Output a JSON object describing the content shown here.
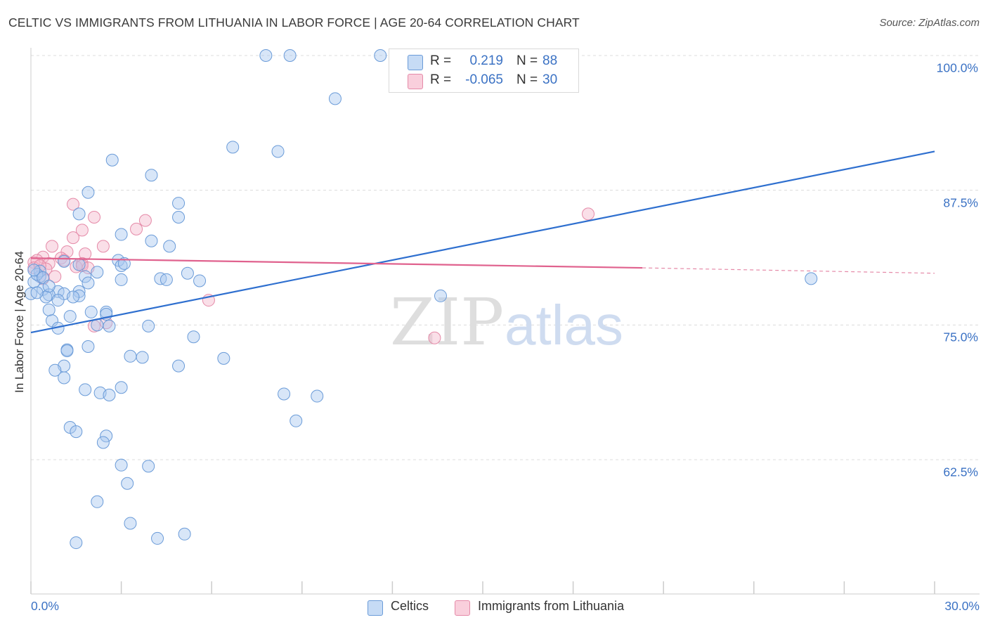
{
  "title": "CELTIC VS IMMIGRANTS FROM LITHUANIA IN LABOR FORCE | AGE 20-64 CORRELATION CHART",
  "source": "Source: ZipAtlas.com",
  "watermark": {
    "zip": "ZIP",
    "atlas": "atlas"
  },
  "legend": {
    "rows": [
      {
        "r_label": "R =",
        "r_value": "0.219",
        "n_label": "N =",
        "n_value": "88"
      },
      {
        "r_label": "R =",
        "r_value": "-0.065",
        "n_label": "N =",
        "n_value": "30"
      }
    ]
  },
  "bottom_legend": {
    "series1": "Celtics",
    "series2": "Immigrants from Lithuania"
  },
  "colors": {
    "blue_fill": "#a9c8ef",
    "blue_stroke": "#6a9bd8",
    "blue_line": "#2e6fcf",
    "pink_fill": "#f5b8cb",
    "pink_stroke": "#e58aa8",
    "pink_line": "#e0628e",
    "grid": "#dcdcdc",
    "axis_text": "#3b72c4"
  },
  "chart_data": {
    "type": "scatter",
    "title": "CELTIC VS IMMIGRANTS FROM LITHUANIA IN LABOR FORCE | AGE 20-64 CORRELATION CHART",
    "xlabel": "",
    "ylabel": "In Labor Force | Age 20-64",
    "xlim": [
      0,
      30
    ],
    "ylim": [
      50.5,
      101
    ],
    "y_ticks": [
      {
        "value": 100,
        "label": "100.0%"
      },
      {
        "value": 87.5,
        "label": "87.5%"
      },
      {
        "value": 75,
        "label": "75.0%"
      },
      {
        "value": 62.5,
        "label": "62.5%"
      }
    ],
    "x_tick_labels": [
      {
        "value": 0,
        "label": "0.0%"
      },
      {
        "value": 30,
        "label": "30.0%"
      }
    ],
    "x_minor_ticks": [
      0,
      3,
      6,
      9,
      12,
      15,
      18,
      21,
      24,
      27,
      30
    ],
    "grid": true,
    "series": [
      {
        "name": "Celtics",
        "color": "#a9c8ef",
        "points": [
          [
            7.8,
            100
          ],
          [
            8.6,
            100
          ],
          [
            11.6,
            100
          ],
          [
            10.1,
            96
          ],
          [
            6.7,
            91.5
          ],
          [
            8.2,
            91.1
          ],
          [
            2.7,
            90.3
          ],
          [
            4,
            88.9
          ],
          [
            1.9,
            87.3
          ],
          [
            4.9,
            86.3
          ],
          [
            1.6,
            85.3
          ],
          [
            4.9,
            85.0
          ],
          [
            3.0,
            83.4
          ],
          [
            4.0,
            82.8
          ],
          [
            4.6,
            82.3
          ],
          [
            2.9,
            81.0
          ],
          [
            1.1,
            80.9
          ],
          [
            3.0,
            80.5
          ],
          [
            5.2,
            79.8
          ],
          [
            2.2,
            79.9
          ],
          [
            0.3,
            79.5
          ],
          [
            1.8,
            79.5
          ],
          [
            4.3,
            79.3
          ],
          [
            4.5,
            79.2
          ],
          [
            3.0,
            79.2
          ],
          [
            5.6,
            79.1
          ],
          [
            0.1,
            79.0
          ],
          [
            1.9,
            78.9
          ],
          [
            0.4,
            78.3
          ],
          [
            1.6,
            78.1
          ],
          [
            0.9,
            78.1
          ],
          [
            1.1,
            77.9
          ],
          [
            0.6,
            77.8
          ],
          [
            0.0,
            77.9
          ],
          [
            1.6,
            77.7
          ],
          [
            1.4,
            77.6
          ],
          [
            13.6,
            77.7
          ],
          [
            0.5,
            77.6
          ],
          [
            0.9,
            77.3
          ],
          [
            25.9,
            79.3
          ],
          [
            0.6,
            76.4
          ],
          [
            2.0,
            76.2
          ],
          [
            2.5,
            76.2
          ],
          [
            2.5,
            76.0
          ],
          [
            1.3,
            75.8
          ],
          [
            0.7,
            75.4
          ],
          [
            2.2,
            75.0
          ],
          [
            2.6,
            74.9
          ],
          [
            3.9,
            74.9
          ],
          [
            0.9,
            74.7
          ],
          [
            5.4,
            73.9
          ],
          [
            1.9,
            73.0
          ],
          [
            1.2,
            72.7
          ],
          [
            1.2,
            72.6
          ],
          [
            3.3,
            72.1
          ],
          [
            3.7,
            72.0
          ],
          [
            6.4,
            71.9
          ],
          [
            4.9,
            71.2
          ],
          [
            1.1,
            71.2
          ],
          [
            0.8,
            70.8
          ],
          [
            1.1,
            70.1
          ],
          [
            1.8,
            69.0
          ],
          [
            3.0,
            69.2
          ],
          [
            2.3,
            68.7
          ],
          [
            2.6,
            68.5
          ],
          [
            8.4,
            68.6
          ],
          [
            9.5,
            68.4
          ],
          [
            8.8,
            66.1
          ],
          [
            1.3,
            65.5
          ],
          [
            1.5,
            65.1
          ],
          [
            2.5,
            64.7
          ],
          [
            2.4,
            64.1
          ],
          [
            3.0,
            62.0
          ],
          [
            3.9,
            61.9
          ],
          [
            3.2,
            60.3
          ],
          [
            2.2,
            58.6
          ],
          [
            3.3,
            56.6
          ],
          [
            1.5,
            54.8
          ],
          [
            4.2,
            55.2
          ],
          [
            5.1,
            55.6
          ],
          [
            0.3,
            80.0
          ],
          [
            0.2,
            79.7
          ],
          [
            0.4,
            79.4
          ],
          [
            0.1,
            80.1
          ],
          [
            0.6,
            78.6
          ],
          [
            0.2,
            78.0
          ],
          [
            1.6,
            80.6
          ],
          [
            3.1,
            80.7
          ]
        ],
        "trend": {
          "x0": 0,
          "y0": 74.3,
          "x1": 30,
          "y1": 91.1
        }
      },
      {
        "name": "Immigrants from Lithuania",
        "color": "#f5b8cb",
        "points": [
          [
            1.4,
            86.2
          ],
          [
            2.1,
            85.0
          ],
          [
            3.8,
            84.7
          ],
          [
            1.7,
            83.8
          ],
          [
            3.5,
            83.9
          ],
          [
            1.4,
            83.1
          ],
          [
            2.4,
            82.3
          ],
          [
            0.7,
            82.3
          ],
          [
            1.2,
            81.8
          ],
          [
            1.8,
            81.6
          ],
          [
            1.0,
            81.2
          ],
          [
            0.4,
            81.3
          ],
          [
            1.1,
            81.0
          ],
          [
            0.1,
            80.8
          ],
          [
            0.2,
            81.0
          ],
          [
            0.6,
            80.7
          ],
          [
            1.7,
            80.7
          ],
          [
            0.5,
            80.2
          ],
          [
            1.5,
            80.4
          ],
          [
            1.7,
            80.5
          ],
          [
            0.1,
            80.3
          ],
          [
            0.8,
            79.5
          ],
          [
            0.3,
            80.5
          ],
          [
            1.9,
            80.3
          ],
          [
            0.4,
            79.3
          ],
          [
            5.9,
            77.3
          ],
          [
            2.5,
            75.2
          ],
          [
            2.1,
            74.9
          ],
          [
            13.4,
            73.8
          ],
          [
            18.5,
            85.3
          ]
        ],
        "trend": {
          "x0": 0,
          "y0": 81.2,
          "x1": 20.3,
          "y1": 80.3
        },
        "trend_dashed": {
          "x0": 20.3,
          "y0": 80.3,
          "x1": 30,
          "y1": 79.8
        }
      }
    ]
  }
}
